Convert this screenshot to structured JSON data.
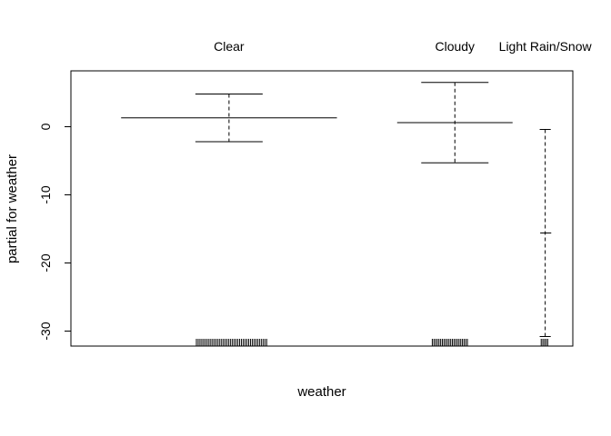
{
  "chart_data": {
    "type": "termplot",
    "title": "",
    "xlabel": "weather",
    "ylabel": "partial for weather",
    "ylim": [
      -32.2,
      8.2
    ],
    "yticks": [
      0,
      -10,
      -20,
      -30
    ],
    "categories": [
      {
        "label": "Clear",
        "x_center": 0.315,
        "x_left": 0.1,
        "x_right": 0.53,
        "effect": 1.3,
        "upper": 4.8,
        "lower": -2.2,
        "rug_from": 0.25,
        "rug_to": 0.39,
        "rug_count": 40
      },
      {
        "label": "Cloudy",
        "x_center": 0.765,
        "x_left": 0.65,
        "x_right": 0.88,
        "effect": 0.6,
        "upper": 6.5,
        "lower": -5.3,
        "rug_from": 0.72,
        "rug_to": 0.79,
        "rug_count": 22
      },
      {
        "label": "Light Rain/Snow",
        "x_center": 0.945,
        "x_left": 0.935,
        "x_right": 0.957,
        "effect": -15.6,
        "upper": -0.4,
        "lower": -30.8,
        "rug_from": 0.937,
        "rug_to": 0.95,
        "rug_count": 5
      }
    ]
  }
}
